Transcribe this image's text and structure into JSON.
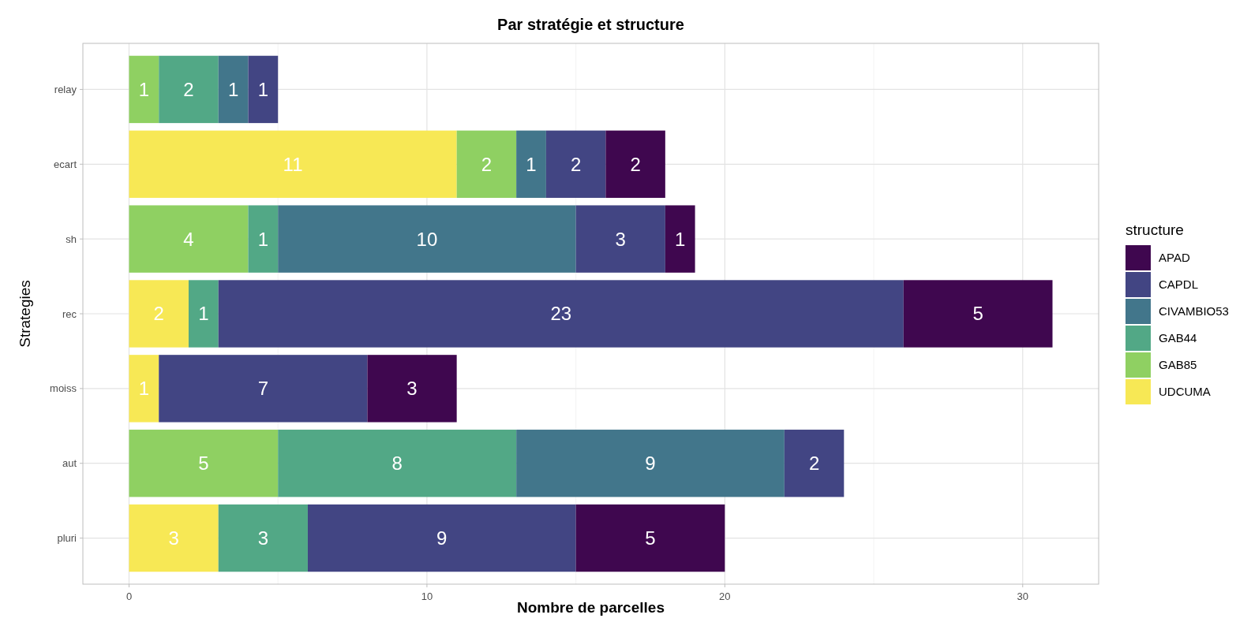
{
  "chart_data": {
    "type": "bar",
    "orientation": "horizontal",
    "stacked": true,
    "title": "Par stratégie et structure",
    "xlabel": "Nombre de parcelles",
    "ylabel": "Strategies",
    "legend_title": "structure",
    "legend": "right",
    "grid": true,
    "data_labels": true,
    "categories": [
      "relay",
      "ecart",
      "sh",
      "rec",
      "moiss",
      "aut",
      "pluri"
    ],
    "xlim": [
      -1.55,
      32.55
    ],
    "xticks": [
      0,
      10,
      20,
      30
    ],
    "series": [
      {
        "name": "UDCUMA",
        "color": "#f7e855",
        "values": [
          null,
          11,
          null,
          2,
          1,
          null,
          3
        ]
      },
      {
        "name": "GAB85",
        "color": "#8fd062",
        "values": [
          1,
          2,
          4,
          null,
          null,
          5,
          null
        ]
      },
      {
        "name": "GAB44",
        "color": "#52a886",
        "values": [
          2,
          null,
          1,
          1,
          null,
          8,
          3
        ]
      },
      {
        "name": "CIVAMBIO53",
        "color": "#42768b",
        "values": [
          1,
          1,
          10,
          null,
          null,
          9,
          null
        ]
      },
      {
        "name": "CAPDL",
        "color": "#424583",
        "values": [
          1,
          2,
          3,
          23,
          7,
          2,
          9
        ]
      },
      {
        "name": "APAD",
        "color": "#3f074f",
        "values": [
          null,
          2,
          1,
          5,
          3,
          null,
          5
        ]
      }
    ]
  }
}
